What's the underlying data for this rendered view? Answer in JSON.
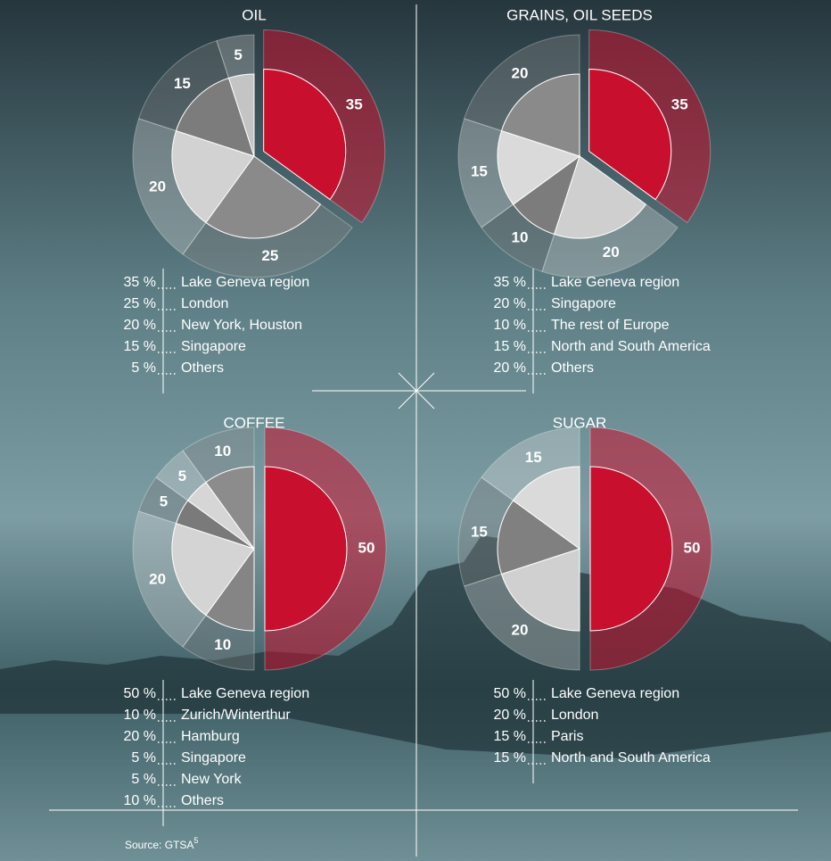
{
  "chart_data": [
    {
      "type": "pie",
      "title": "OIL",
      "categories": [
        "Lake Geneva region",
        "London",
        "New York, Houston",
        "Singapore",
        "Others"
      ],
      "values": [
        35,
        25,
        20,
        15,
        5
      ],
      "value_labels": [
        "35 %",
        "25 %",
        "20 %",
        "15 %",
        "5 %"
      ],
      "colors": [
        "#c8102e",
        "#8a8a8a",
        "#d2d2d2",
        "#7c7c7c",
        "#c4c4c4"
      ]
    },
    {
      "type": "pie",
      "title": "GRAINS, OIL SEEDS",
      "categories": [
        "Lake Geneva region",
        "Singapore",
        "The rest of Europe",
        "North and South America",
        "Others"
      ],
      "values": [
        35,
        20,
        10,
        15,
        20
      ],
      "value_labels": [
        "35 %",
        "20 %",
        "10 %",
        "15 %",
        "20 %"
      ],
      "colors": [
        "#c8102e",
        "#cfcfcf",
        "#7c7c7c",
        "#dadada",
        "#8a8a8a"
      ]
    },
    {
      "type": "pie",
      "title": "COFFEE",
      "categories": [
        "Lake Geneva region",
        "Zurich/Winterthur",
        "Hamburg",
        "Singapore",
        "New York",
        "Others"
      ],
      "values": [
        50,
        10,
        20,
        5,
        5,
        10
      ],
      "value_labels": [
        "50 %",
        "10 %",
        "20 %",
        "5 %",
        "5 %",
        "10 %"
      ],
      "colors": [
        "#c8102e",
        "#858585",
        "#d4d4d4",
        "#7a7a7a",
        "#d6d6d6",
        "#8c8c8c"
      ]
    },
    {
      "type": "pie",
      "title": "SUGAR",
      "categories": [
        "Lake Geneva region",
        "London",
        "Paris",
        "North and South America"
      ],
      "values": [
        50,
        20,
        15,
        15
      ],
      "value_labels": [
        "50 %",
        "20 %",
        "15 %",
        "15 %"
      ],
      "colors": [
        "#c8102e",
        "#d0d0d0",
        "#808080",
        "#dadada"
      ]
    }
  ],
  "source": {
    "text": "Source: GTSA",
    "note": "5"
  }
}
